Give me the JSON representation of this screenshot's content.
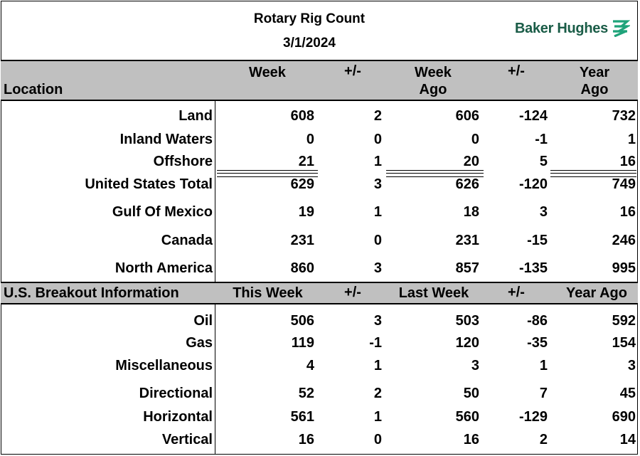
{
  "header": {
    "title": "Rotary Rig Count",
    "date": "3/1/2024",
    "logo_text": "Baker Hughes",
    "logo_color": "#1a5c47",
    "logo_mark_color": "#1fa37a"
  },
  "section1": {
    "headers": {
      "location": "Location",
      "week": "Week",
      "change1": "+/-",
      "week_ago_line1": "Week",
      "week_ago_line2": "Ago",
      "change2": "+/-",
      "year_ago_line1": "Year",
      "year_ago_line2": "Ago"
    },
    "rows": [
      {
        "label": "Land",
        "week": "608",
        "change1": "2",
        "week_ago": "606",
        "change2": "-124",
        "year_ago": "732"
      },
      {
        "label": "Inland Waters",
        "week": "0",
        "change1": "0",
        "week_ago": "0",
        "change2": "-1",
        "year_ago": "1"
      },
      {
        "label": "Offshore",
        "week": "21",
        "change1": "1",
        "week_ago": "20",
        "change2": "5",
        "year_ago": "16"
      },
      {
        "label": "United States Total",
        "week": "629",
        "change1": "3",
        "week_ago": "626",
        "change2": "-120",
        "year_ago": "749"
      },
      {
        "label": "Gulf Of Mexico",
        "week": "19",
        "change1": "1",
        "week_ago": "18",
        "change2": "3",
        "year_ago": "16"
      },
      {
        "label": "Canada",
        "week": "231",
        "change1": "0",
        "week_ago": "231",
        "change2": "-15",
        "year_ago": "246"
      },
      {
        "label": "North America",
        "week": "860",
        "change1": "3",
        "week_ago": "857",
        "change2": "-135",
        "year_ago": "995"
      }
    ]
  },
  "section2": {
    "headers": {
      "title": "U.S. Breakout Information",
      "this_week": "This Week",
      "change1": "+/-",
      "last_week": "Last Week",
      "change2": "+/-",
      "year_ago": "Year Ago"
    },
    "rows": [
      {
        "label": "Oil",
        "week": "506",
        "change1": "3",
        "week_ago": "503",
        "change2": "-86",
        "year_ago": "592"
      },
      {
        "label": "Gas",
        "week": "119",
        "change1": "-1",
        "week_ago": "120",
        "change2": "-35",
        "year_ago": "154"
      },
      {
        "label": "Miscellaneous",
        "week": "4",
        "change1": "1",
        "week_ago": "3",
        "change2": "1",
        "year_ago": "3"
      },
      {
        "label": "Directional",
        "week": "52",
        "change1": "2",
        "week_ago": "50",
        "change2": "7",
        "year_ago": "45"
      },
      {
        "label": "Horizontal",
        "week": "561",
        "change1": "1",
        "week_ago": "560",
        "change2": "-129",
        "year_ago": "690"
      },
      {
        "label": "Vertical",
        "week": "16",
        "change1": "0",
        "week_ago": "16",
        "change2": "2",
        "year_ago": "14"
      }
    ]
  }
}
